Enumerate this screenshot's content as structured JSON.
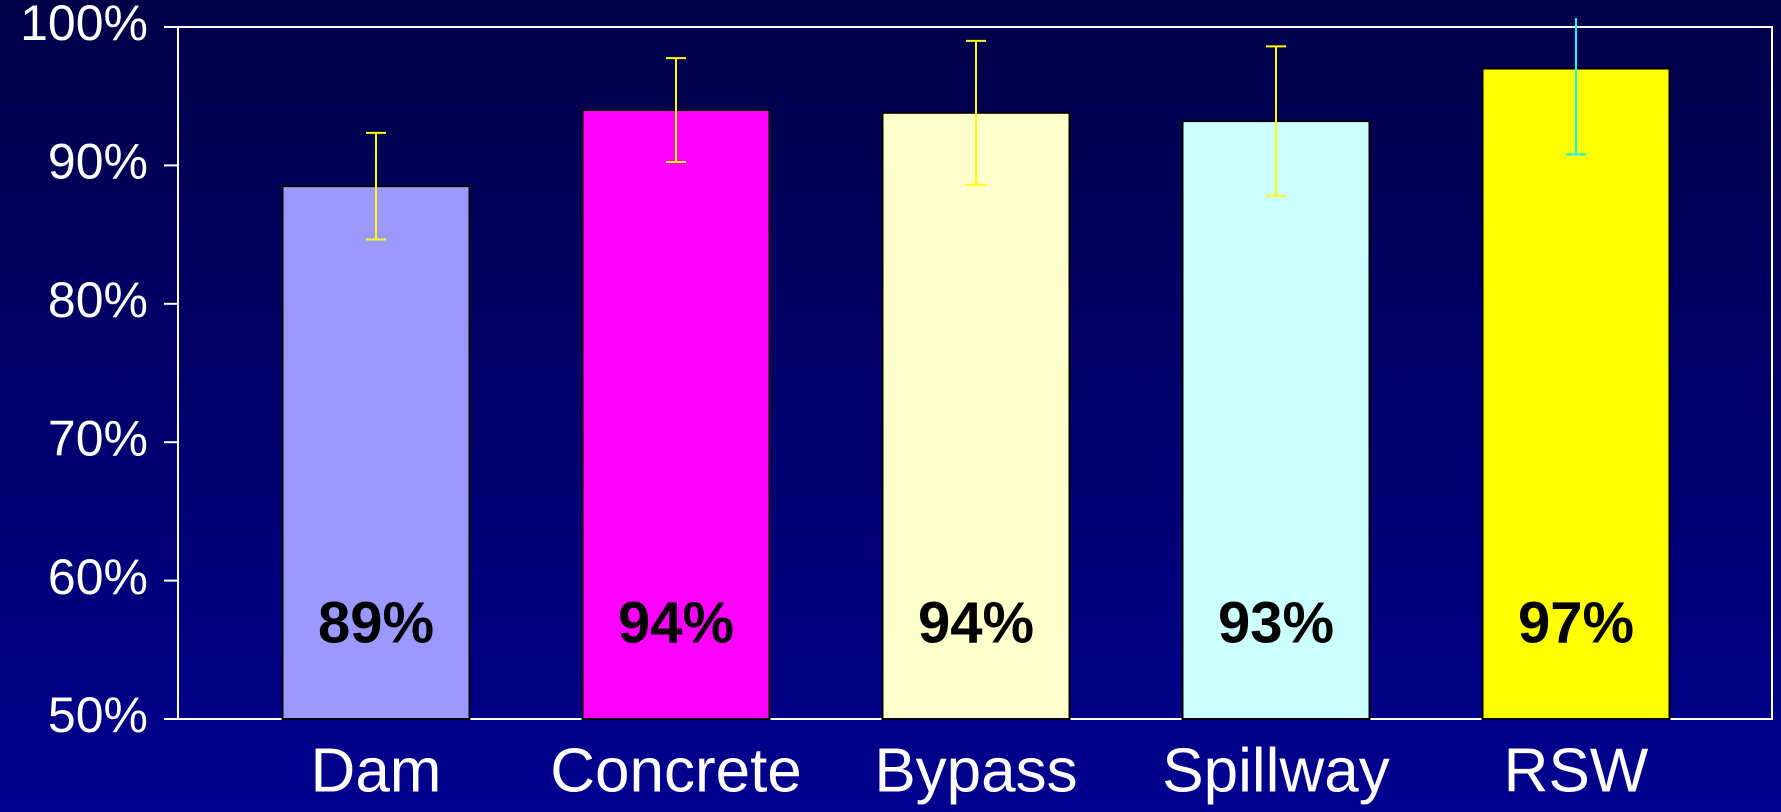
{
  "chart_data": {
    "type": "bar",
    "categories": [
      "Dam",
      "Concrete",
      "Bypass",
      "Spillway",
      "RSW"
    ],
    "values": [
      88.5,
      94,
      93.8,
      93.2,
      97
    ],
    "value_labels": [
      "89%",
      "94%",
      "94%",
      "93%",
      "97%"
    ],
    "errors": [
      3.85,
      3.75,
      5.2,
      5.4,
      6.2
    ],
    "colors": [
      "#9999ff",
      "#ff00ff",
      "#ffffcc",
      "#ccffff",
      "#ffff00"
    ],
    "error_colors": [
      "#ffff00",
      "#ffff00",
      "#ffff00",
      "#ffff00",
      "#00ffff"
    ],
    "ylim": [
      50,
      100
    ],
    "yticks": [
      {
        "value": 50,
        "label": "50%"
      },
      {
        "value": 60,
        "label": "60%"
      },
      {
        "value": 70,
        "label": "70%"
      },
      {
        "value": 80,
        "label": "80%"
      },
      {
        "value": 90,
        "label": "90%"
      },
      {
        "value": 100,
        "label": "100%"
      }
    ]
  }
}
